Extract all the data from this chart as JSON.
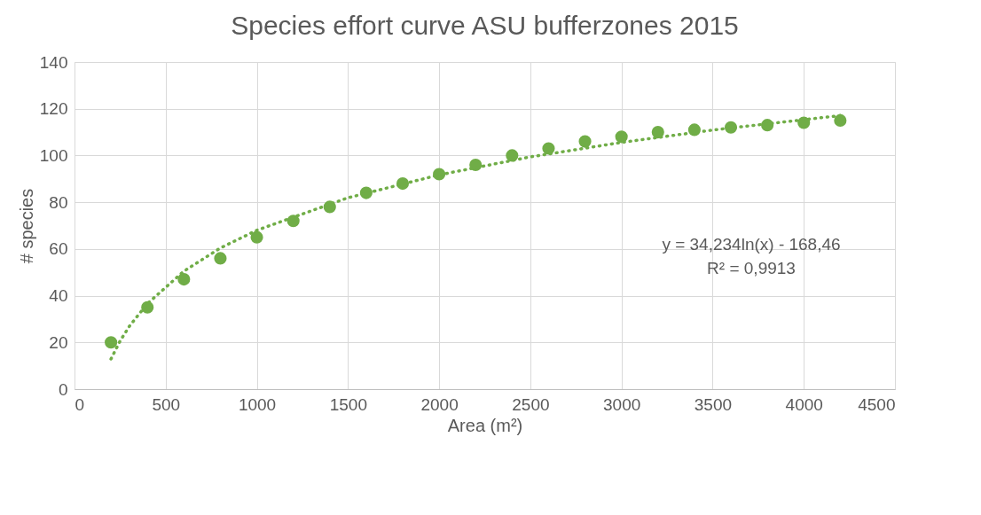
{
  "chart_data": {
    "type": "scatter",
    "title": "Species effort curve ASU bufferzones 2015",
    "xlabel": "Area (m²)",
    "ylabel": "# species",
    "x": [
      200,
      400,
      600,
      800,
      1000,
      1200,
      1400,
      1600,
      1800,
      2000,
      2200,
      2400,
      2600,
      2800,
      3000,
      3200,
      3400,
      3600,
      3800,
      4000,
      4200
    ],
    "series": [
      {
        "type": "scatter",
        "color": "#70ad47",
        "marker": "circle",
        "values": [
          20,
          35,
          47,
          56,
          65,
          72,
          78,
          84,
          88,
          92,
          96,
          100,
          103,
          106,
          108,
          110,
          111,
          112,
          113,
          114,
          115
        ]
      },
      {
        "type": "line",
        "color": "#70ad47",
        "line_style": "dotted",
        "marker": "none",
        "x": [
          200,
          250,
          300,
          400,
          600,
          800,
          1000,
          1500,
          2000,
          2500,
          3000,
          3500,
          4200
        ],
        "values": [
          12.9,
          20.6,
          26.8,
          36.6,
          50.5,
          60.4,
          68.0,
          81.9,
          91.7,
          99.4,
          105.6,
          110.9,
          117.1
        ]
      }
    ],
    "xlim": [
      0,
      4500
    ],
    "xticks": [
      0,
      500,
      1000,
      1500,
      2000,
      2500,
      3000,
      3500,
      4000,
      4500
    ],
    "ylim": [
      0,
      140
    ],
    "yticks": [
      0,
      20,
      40,
      60,
      80,
      100,
      120,
      140
    ],
    "grid": true,
    "annotations": [
      "y = 34,234ln(x) - 168,46",
      "R² = 0,9913"
    ]
  }
}
